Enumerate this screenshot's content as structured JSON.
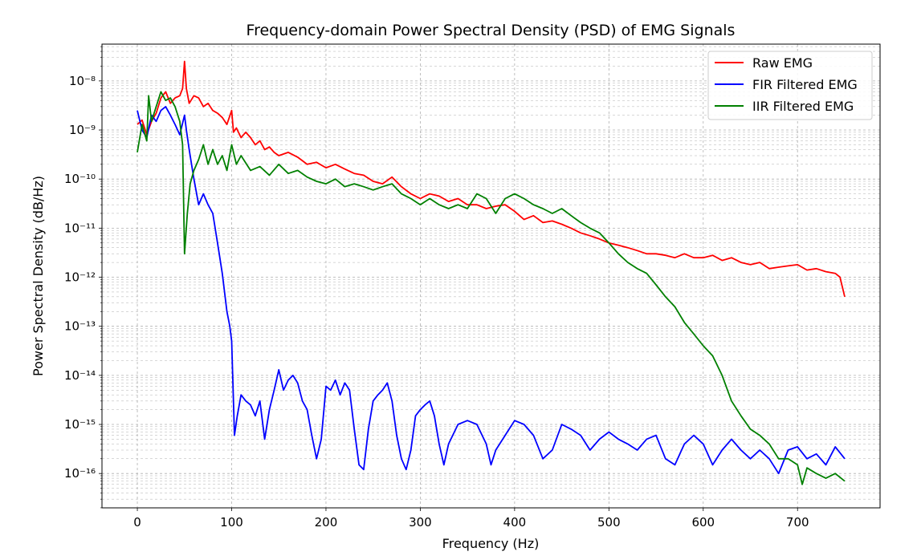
{
  "chart_data": {
    "type": "line",
    "title": "Frequency-domain Power Spectral Density (PSD) of EMG Signals",
    "xlabel": "Frequency (Hz)",
    "ylabel": "Power Spectral Density (dB/Hz)",
    "xlim": [
      -37.5,
      787.5
    ],
    "ylim_log10": [
      -16.7,
      -7.25
    ],
    "y_scale": "log",
    "grid": true,
    "legend_position": "top-right",
    "x_ticks": [
      0,
      100,
      200,
      300,
      400,
      500,
      600,
      700
    ],
    "x_tick_labels": [
      "0",
      "100",
      "200",
      "300",
      "400",
      "500",
      "600",
      "700"
    ],
    "y_ticks": [
      -16,
      -15,
      -14,
      -13,
      -12,
      -11,
      -10,
      -9,
      -8
    ],
    "y_tick_labels": [
      "10⁻¹⁶",
      "10⁻¹⁵",
      "10⁻¹⁴",
      "10⁻¹³",
      "10⁻¹²",
      "10⁻¹¹",
      "10⁻¹⁰",
      "10⁻⁹",
      "10⁻⁸"
    ],
    "series": [
      {
        "name": "Raw EMG",
        "color": "#ff0000",
        "points": [
          [
            0,
            1.3e-09
          ],
          [
            5,
            1.6e-09
          ],
          [
            10,
            8e-10
          ],
          [
            15,
            1.5e-09
          ],
          [
            20,
            2.2e-09
          ],
          [
            25,
            4.5e-09
          ],
          [
            30,
            6e-09
          ],
          [
            35,
            3.5e-09
          ],
          [
            40,
            4.5e-09
          ],
          [
            45,
            5e-09
          ],
          [
            48,
            7e-09
          ],
          [
            50,
            2.5e-08
          ],
          [
            52,
            7e-09
          ],
          [
            55,
            3.5e-09
          ],
          [
            60,
            5e-09
          ],
          [
            65,
            4.5e-09
          ],
          [
            70,
            3e-09
          ],
          [
            75,
            3.5e-09
          ],
          [
            80,
            2.5e-09
          ],
          [
            85,
            2.2e-09
          ],
          [
            90,
            1.8e-09
          ],
          [
            95,
            1.3e-09
          ],
          [
            100,
            2.5e-09
          ],
          [
            102,
            9e-10
          ],
          [
            105,
            1.1e-09
          ],
          [
            110,
            7e-10
          ],
          [
            115,
            9e-10
          ],
          [
            120,
            7e-10
          ],
          [
            125,
            5e-10
          ],
          [
            130,
            6e-10
          ],
          [
            135,
            4e-10
          ],
          [
            140,
            4.5e-10
          ],
          [
            145,
            3.5e-10
          ],
          [
            150,
            3e-10
          ],
          [
            160,
            3.5e-10
          ],
          [
            170,
            2.8e-10
          ],
          [
            180,
            2e-10
          ],
          [
            190,
            2.2e-10
          ],
          [
            200,
            1.7e-10
          ],
          [
            210,
            2e-10
          ],
          [
            220,
            1.6e-10
          ],
          [
            230,
            1.3e-10
          ],
          [
            240,
            1.2e-10
          ],
          [
            250,
            9e-11
          ],
          [
            260,
            8e-11
          ],
          [
            270,
            1.1e-10
          ],
          [
            280,
            7e-11
          ],
          [
            290,
            5e-11
          ],
          [
            300,
            4e-11
          ],
          [
            310,
            5e-11
          ],
          [
            320,
            4.5e-11
          ],
          [
            330,
            3.5e-11
          ],
          [
            340,
            4e-11
          ],
          [
            350,
            3e-11
          ],
          [
            360,
            3e-11
          ],
          [
            370,
            2.5e-11
          ],
          [
            380,
            2.8e-11
          ],
          [
            390,
            3e-11
          ],
          [
            400,
            2.2e-11
          ],
          [
            410,
            1.5e-11
          ],
          [
            420,
            1.8e-11
          ],
          [
            430,
            1.3e-11
          ],
          [
            440,
            1.4e-11
          ],
          [
            450,
            1.2e-11
          ],
          [
            460,
            1e-11
          ],
          [
            470,
            8e-12
          ],
          [
            480,
            7e-12
          ],
          [
            490,
            6e-12
          ],
          [
            500,
            5e-12
          ],
          [
            510,
            4.5e-12
          ],
          [
            520,
            4e-12
          ],
          [
            530,
            3.5e-12
          ],
          [
            540,
            3e-12
          ],
          [
            550,
            3e-12
          ],
          [
            560,
            2.8e-12
          ],
          [
            570,
            2.5e-12
          ],
          [
            580,
            3e-12
          ],
          [
            590,
            2.5e-12
          ],
          [
            600,
            2.5e-12
          ],
          [
            610,
            2.8e-12
          ],
          [
            620,
            2.2e-12
          ],
          [
            630,
            2.5e-12
          ],
          [
            640,
            2e-12
          ],
          [
            650,
            1.8e-12
          ],
          [
            660,
            2e-12
          ],
          [
            670,
            1.5e-12
          ],
          [
            680,
            1.6e-12
          ],
          [
            690,
            1.7e-12
          ],
          [
            700,
            1.8e-12
          ],
          [
            710,
            1.4e-12
          ],
          [
            720,
            1.5e-12
          ],
          [
            730,
            1.3e-12
          ],
          [
            740,
            1.2e-12
          ],
          [
            745,
            1e-12
          ],
          [
            750,
            4e-13
          ]
        ]
      },
      {
        "name": "FIR Filtered EMG",
        "color": "#0000ff",
        "points": [
          [
            0,
            2.5e-09
          ],
          [
            5,
            1e-09
          ],
          [
            10,
            7e-10
          ],
          [
            15,
            2e-09
          ],
          [
            20,
            1.5e-09
          ],
          [
            25,
            2.5e-09
          ],
          [
            30,
            3e-09
          ],
          [
            35,
            2e-09
          ],
          [
            40,
            1.3e-09
          ],
          [
            45,
            8e-10
          ],
          [
            50,
            2e-09
          ],
          [
            52,
            1e-09
          ],
          [
            55,
            4e-10
          ],
          [
            60,
            1e-10
          ],
          [
            65,
            3e-11
          ],
          [
            70,
            5e-11
          ],
          [
            75,
            3e-11
          ],
          [
            80,
            2e-11
          ],
          [
            85,
            5e-12
          ],
          [
            90,
            1.2e-12
          ],
          [
            95,
            2e-13
          ],
          [
            98,
            1e-13
          ],
          [
            100,
            5e-14
          ],
          [
            103,
            6e-16
          ],
          [
            106,
            1.5e-15
          ],
          [
            110,
            4e-15
          ],
          [
            115,
            3e-15
          ],
          [
            120,
            2.5e-15
          ],
          [
            125,
            1.5e-15
          ],
          [
            130,
            3e-15
          ],
          [
            135,
            5e-16
          ],
          [
            140,
            2e-15
          ],
          [
            145,
            5e-15
          ],
          [
            150,
            1.3e-14
          ],
          [
            155,
            5e-15
          ],
          [
            160,
            8e-15
          ],
          [
            165,
            1e-14
          ],
          [
            170,
            7e-15
          ],
          [
            175,
            3e-15
          ],
          [
            180,
            2e-15
          ],
          [
            185,
            6e-16
          ],
          [
            190,
            2e-16
          ],
          [
            195,
            5e-16
          ],
          [
            200,
            6e-15
          ],
          [
            205,
            5e-15
          ],
          [
            210,
            8e-15
          ],
          [
            215,
            4e-15
          ],
          [
            220,
            7e-15
          ],
          [
            225,
            5e-15
          ],
          [
            230,
            8e-16
          ],
          [
            235,
            1.5e-16
          ],
          [
            240,
            1.2e-16
          ],
          [
            245,
            8e-16
          ],
          [
            250,
            3e-15
          ],
          [
            255,
            4e-15
          ],
          [
            260,
            5e-15
          ],
          [
            265,
            7e-15
          ],
          [
            270,
            3e-15
          ],
          [
            275,
            6e-16
          ],
          [
            280,
            2e-16
          ],
          [
            285,
            1.2e-16
          ],
          [
            290,
            3e-16
          ],
          [
            295,
            1.5e-15
          ],
          [
            300,
            2e-15
          ],
          [
            305,
            2.5e-15
          ],
          [
            310,
            3e-15
          ],
          [
            315,
            1.5e-15
          ],
          [
            320,
            4e-16
          ],
          [
            325,
            1.5e-16
          ],
          [
            330,
            4e-16
          ],
          [
            340,
            1e-15
          ],
          [
            350,
            1.2e-15
          ],
          [
            360,
            1e-15
          ],
          [
            370,
            4e-16
          ],
          [
            375,
            1.5e-16
          ],
          [
            380,
            3e-16
          ],
          [
            390,
            6e-16
          ],
          [
            400,
            1.2e-15
          ],
          [
            410,
            1e-15
          ],
          [
            420,
            6e-16
          ],
          [
            430,
            2e-16
          ],
          [
            440,
            3e-16
          ],
          [
            450,
            1e-15
          ],
          [
            460,
            8e-16
          ],
          [
            470,
            6e-16
          ],
          [
            480,
            3e-16
          ],
          [
            490,
            5e-16
          ],
          [
            500,
            7e-16
          ],
          [
            510,
            5e-16
          ],
          [
            520,
            4e-16
          ],
          [
            530,
            3e-16
          ],
          [
            540,
            5e-16
          ],
          [
            550,
            6e-16
          ],
          [
            560,
            2e-16
          ],
          [
            570,
            1.5e-16
          ],
          [
            580,
            4e-16
          ],
          [
            590,
            6e-16
          ],
          [
            600,
            4e-16
          ],
          [
            610,
            1.5e-16
          ],
          [
            620,
            3e-16
          ],
          [
            630,
            5e-16
          ],
          [
            640,
            3e-16
          ],
          [
            650,
            2e-16
          ],
          [
            660,
            3e-16
          ],
          [
            670,
            2e-16
          ],
          [
            680,
            1e-16
          ],
          [
            690,
            3e-16
          ],
          [
            700,
            3.5e-16
          ],
          [
            710,
            2e-16
          ],
          [
            720,
            2.5e-16
          ],
          [
            730,
            1.5e-16
          ],
          [
            740,
            3.5e-16
          ],
          [
            750,
            2e-16
          ]
        ]
      },
      {
        "name": "IIR Filtered EMG",
        "color": "#008000",
        "points": [
          [
            0,
            3.5e-10
          ],
          [
            5,
            1.3e-09
          ],
          [
            10,
            6e-10
          ],
          [
            12,
            5e-09
          ],
          [
            15,
            1.5e-09
          ],
          [
            20,
            3e-09
          ],
          [
            25,
            6e-09
          ],
          [
            30,
            4e-09
          ],
          [
            35,
            4.5e-09
          ],
          [
            40,
            3e-09
          ],
          [
            45,
            1.5e-09
          ],
          [
            48,
            5e-10
          ],
          [
            50,
            3e-12
          ],
          [
            53,
            2e-11
          ],
          [
            56,
            8e-11
          ],
          [
            60,
            1.5e-10
          ],
          [
            65,
            2.5e-10
          ],
          [
            70,
            5e-10
          ],
          [
            75,
            2e-10
          ],
          [
            80,
            4e-10
          ],
          [
            85,
            2e-10
          ],
          [
            90,
            3e-10
          ],
          [
            95,
            1.5e-10
          ],
          [
            100,
            5e-10
          ],
          [
            105,
            2e-10
          ],
          [
            110,
            3e-10
          ],
          [
            120,
            1.5e-10
          ],
          [
            130,
            1.8e-10
          ],
          [
            140,
            1.2e-10
          ],
          [
            150,
            2e-10
          ],
          [
            160,
            1.3e-10
          ],
          [
            170,
            1.5e-10
          ],
          [
            180,
            1.1e-10
          ],
          [
            190,
            9e-11
          ],
          [
            200,
            8e-11
          ],
          [
            210,
            1e-10
          ],
          [
            220,
            7e-11
          ],
          [
            230,
            8e-11
          ],
          [
            240,
            7e-11
          ],
          [
            250,
            6e-11
          ],
          [
            260,
            7e-11
          ],
          [
            270,
            8e-11
          ],
          [
            280,
            5e-11
          ],
          [
            290,
            4e-11
          ],
          [
            300,
            3e-11
          ],
          [
            310,
            4e-11
          ],
          [
            320,
            3e-11
          ],
          [
            330,
            2.5e-11
          ],
          [
            340,
            3e-11
          ],
          [
            350,
            2.5e-11
          ],
          [
            360,
            5e-11
          ],
          [
            370,
            4e-11
          ],
          [
            380,
            2e-11
          ],
          [
            390,
            4e-11
          ],
          [
            400,
            5e-11
          ],
          [
            410,
            4e-11
          ],
          [
            420,
            3e-11
          ],
          [
            430,
            2.5e-11
          ],
          [
            440,
            2e-11
          ],
          [
            450,
            2.5e-11
          ],
          [
            460,
            1.8e-11
          ],
          [
            470,
            1.3e-11
          ],
          [
            480,
            1e-11
          ],
          [
            490,
            8e-12
          ],
          [
            500,
            5e-12
          ],
          [
            510,
            3e-12
          ],
          [
            520,
            2e-12
          ],
          [
            530,
            1.5e-12
          ],
          [
            540,
            1.2e-12
          ],
          [
            550,
            7e-13
          ],
          [
            560,
            4e-13
          ],
          [
            570,
            2.5e-13
          ],
          [
            580,
            1.2e-13
          ],
          [
            590,
            7e-14
          ],
          [
            600,
            4e-14
          ],
          [
            610,
            2.5e-14
          ],
          [
            620,
            1e-14
          ],
          [
            630,
            3e-15
          ],
          [
            640,
            1.5e-15
          ],
          [
            650,
            8e-16
          ],
          [
            660,
            6e-16
          ],
          [
            670,
            4e-16
          ],
          [
            680,
            2e-16
          ],
          [
            690,
            2e-16
          ],
          [
            700,
            1.5e-16
          ],
          [
            705,
            6e-17
          ],
          [
            710,
            1.3e-16
          ],
          [
            720,
            1e-16
          ],
          [
            730,
            8e-17
          ],
          [
            740,
            1e-16
          ],
          [
            750,
            7e-17
          ]
        ]
      }
    ]
  }
}
